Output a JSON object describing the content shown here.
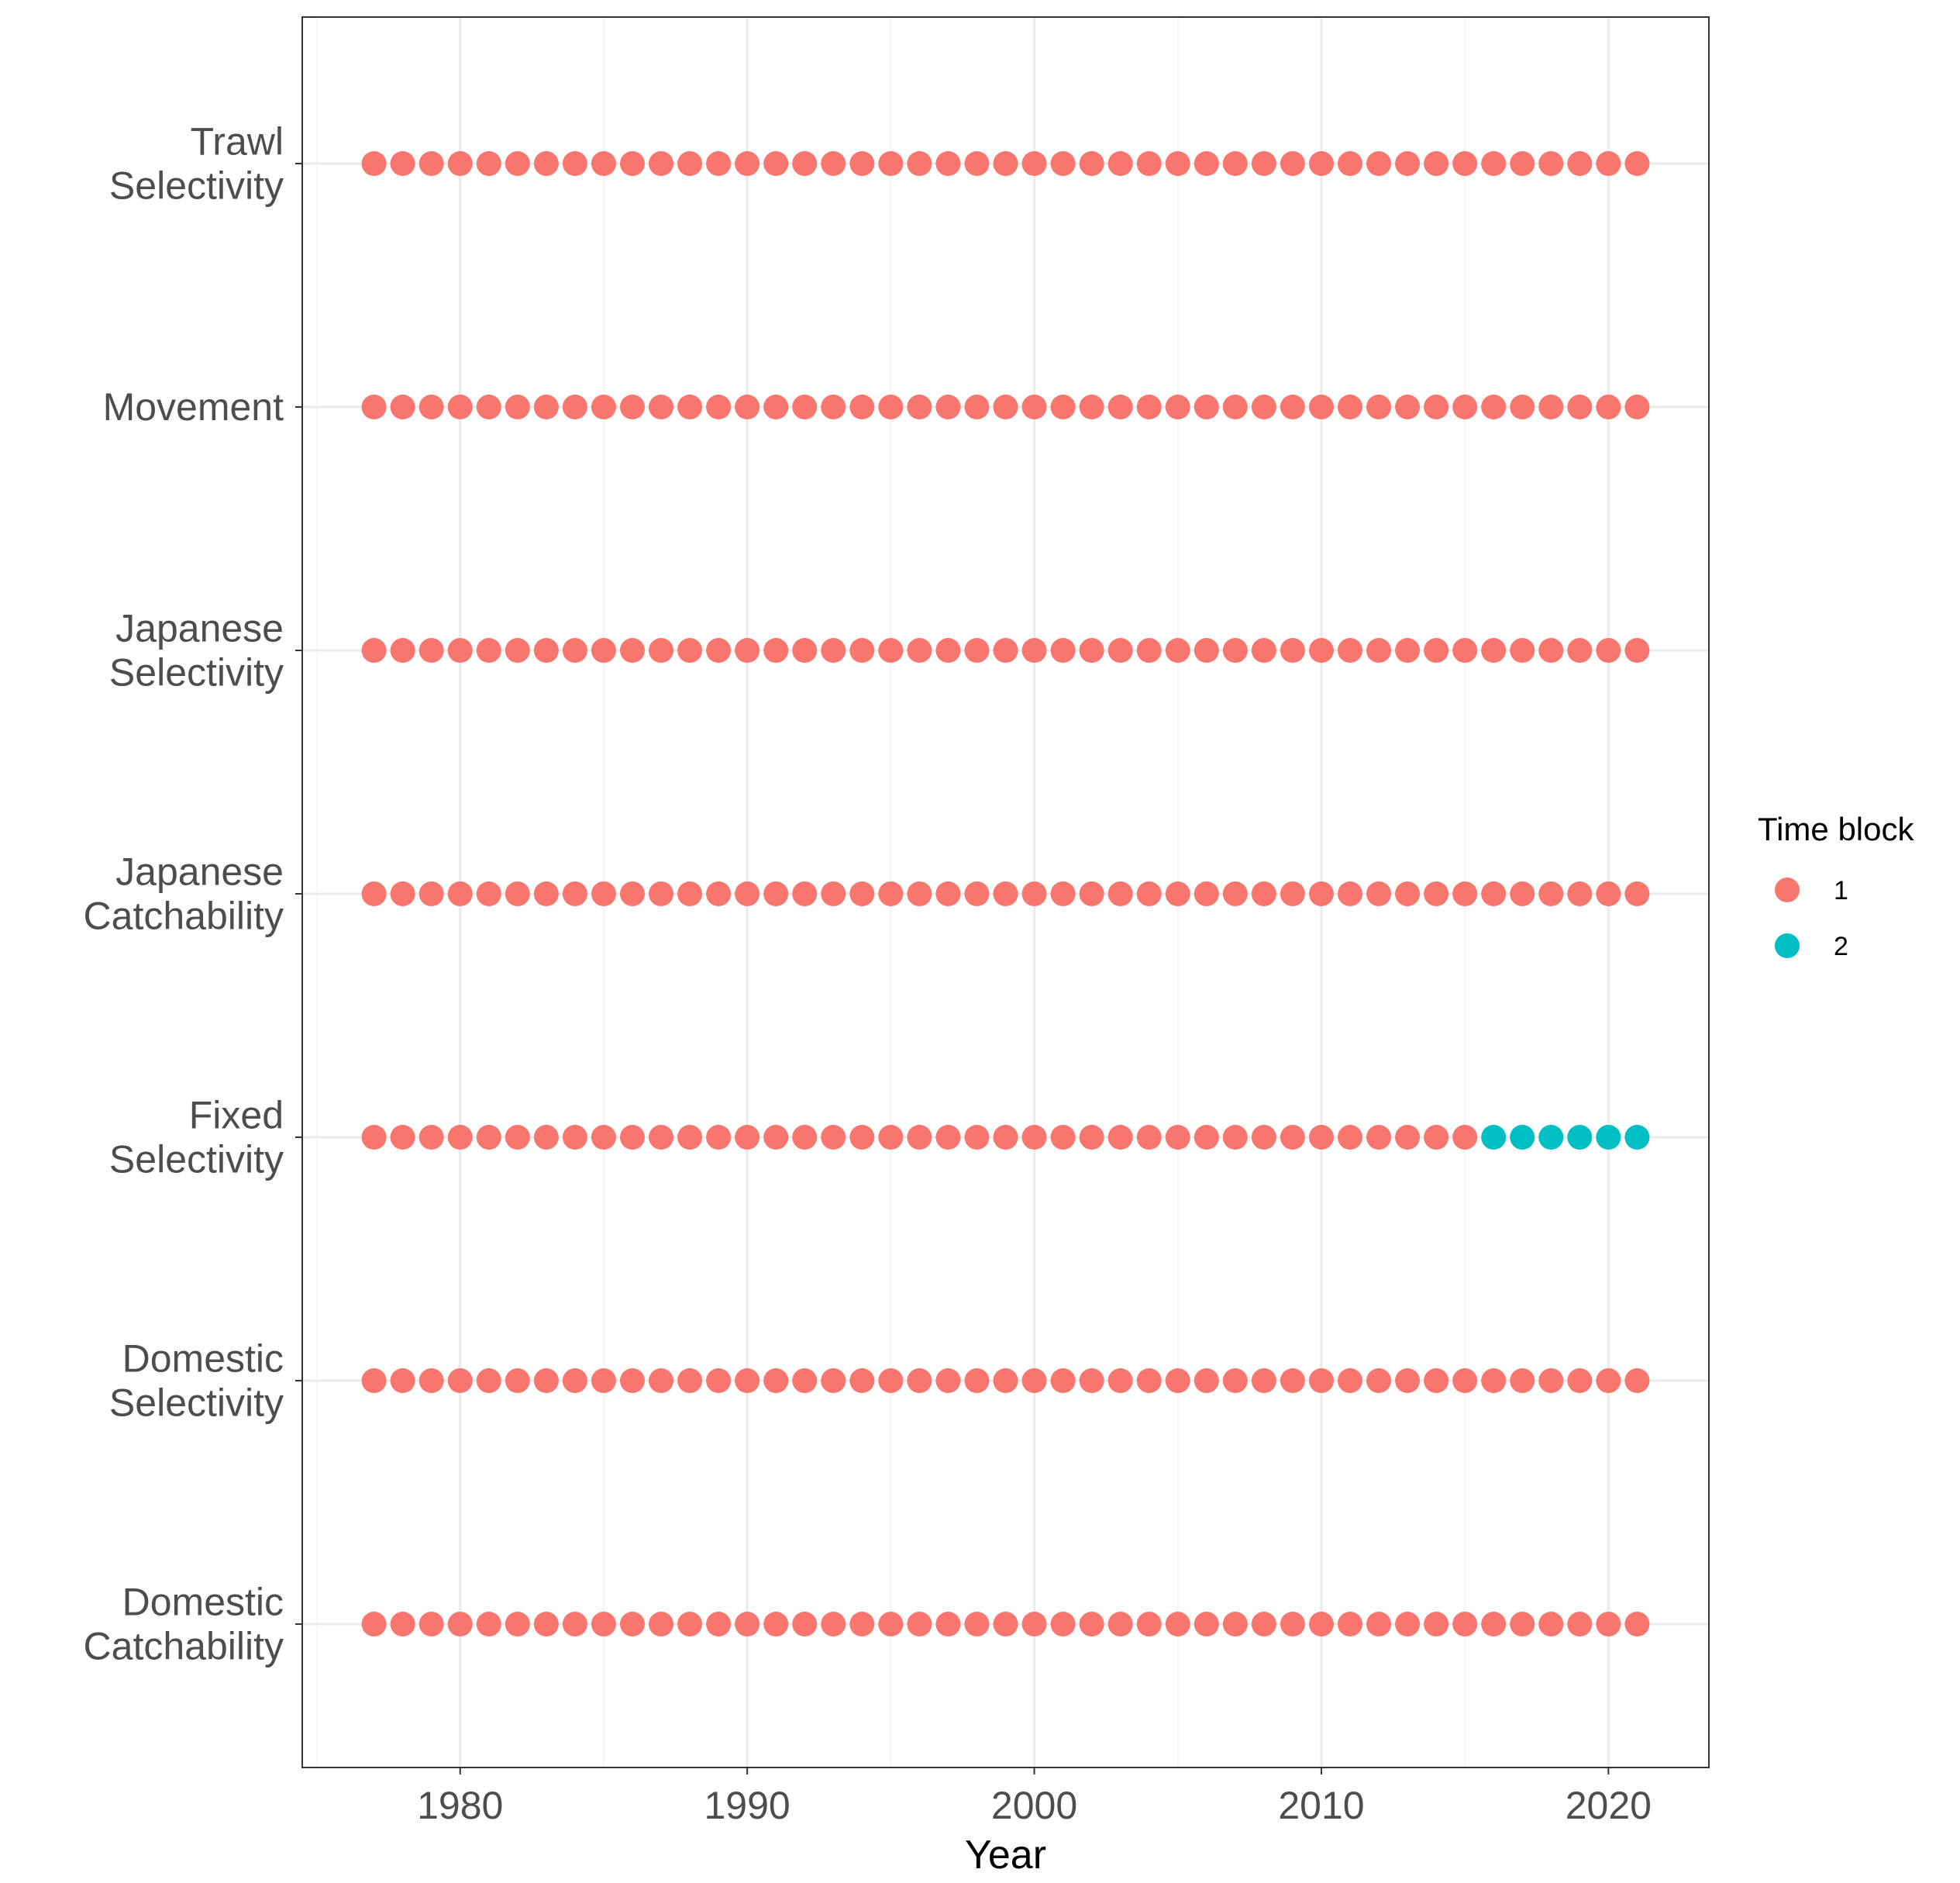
{
  "chart_data": {
    "type": "scatter",
    "xlabel": "Year",
    "ylabel": "",
    "xlim": [
      1974.5,
      2023.5
    ],
    "x_ticks": [
      1980,
      1990,
      2000,
      2010,
      2020
    ],
    "x_minor_ticks": [
      1975,
      1985,
      1995,
      2005,
      2015
    ],
    "years": [
      1977,
      2021
    ],
    "grid": true,
    "legend": {
      "title": "Time block",
      "position": "right",
      "entries": [
        {
          "label": "1",
          "color": "#F8766D"
        },
        {
          "label": "2",
          "color": "#00BFC4"
        }
      ]
    },
    "categories": [
      {
        "label_lines": [
          "Trawl",
          "Selectivity"
        ],
        "blocks": [
          {
            "block": "1",
            "from": 1977,
            "to": 2021
          }
        ]
      },
      {
        "label_lines": [
          "Movement"
        ],
        "blocks": [
          {
            "block": "1",
            "from": 1977,
            "to": 2021
          }
        ]
      },
      {
        "label_lines": [
          "Japanese",
          "Selectivity"
        ],
        "blocks": [
          {
            "block": "1",
            "from": 1977,
            "to": 2021
          }
        ]
      },
      {
        "label_lines": [
          "Japanese",
          "Catchability"
        ],
        "blocks": [
          {
            "block": "1",
            "from": 1977,
            "to": 2021
          }
        ]
      },
      {
        "label_lines": [
          "Fixed",
          "Selectivity"
        ],
        "blocks": [
          {
            "block": "1",
            "from": 1977,
            "to": 2015
          },
          {
            "block": "2",
            "from": 2016,
            "to": 2021
          }
        ]
      },
      {
        "label_lines": [
          "Domestic",
          "Selectivity"
        ],
        "blocks": [
          {
            "block": "1",
            "from": 1977,
            "to": 2021
          }
        ]
      },
      {
        "label_lines": [
          "Domestic",
          "Catchability"
        ],
        "blocks": [
          {
            "block": "1",
            "from": 1977,
            "to": 2021
          }
        ]
      }
    ]
  },
  "colors": {
    "grid_major": "#ebebeb",
    "grid_minor": "#f4f4f4",
    "panel_border": "#333333",
    "tick_text": "#4d4d4d"
  }
}
